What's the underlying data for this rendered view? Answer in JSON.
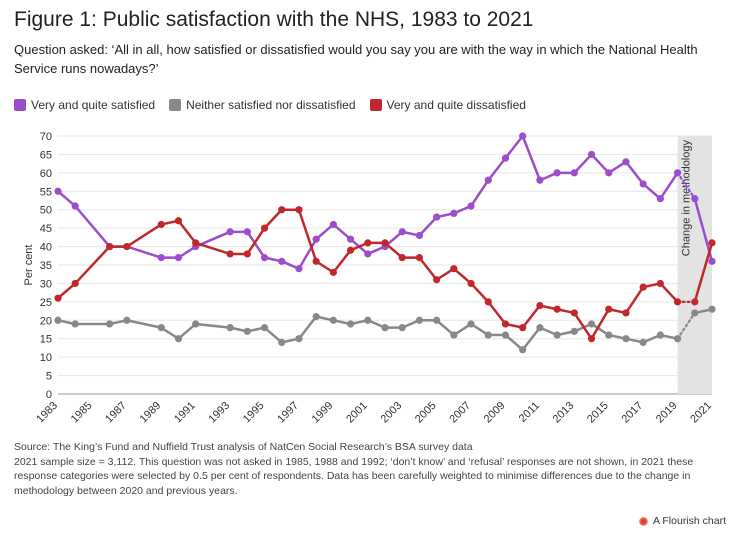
{
  "title": "Figure 1: Public satisfaction with the NHS, 1983 to 2021",
  "subtitle": "Question asked: ‘All in all, how satisfied or dissatisfied would you say you are with the way in which the National Health Service runs nowadays?’",
  "source_line": "Source: The King’s Fund and Nuffield Trust analysis of NatCen Social Research’s BSA survey data",
  "note_line": "2021 sample size = 3,112. This question was not asked in 1985, 1988 and 1992; ‘don’t know’ and ‘refusal’ responses are not shown, in 2021 these response categories were selected by 0.5 per cent of respondents. Data has been carefully weighted to minimise differences due to the change in methodology between 2020 and previous years.",
  "credit": "A Flourish chart",
  "chart_data": {
    "type": "line",
    "ylabel": "Per cent",
    "xlabel": "",
    "ylim": [
      0,
      70
    ],
    "yticks": [
      0,
      5,
      10,
      15,
      20,
      25,
      30,
      35,
      40,
      45,
      50,
      55,
      60,
      65,
      70
    ],
    "xlim": [
      1983,
      2021
    ],
    "xtick_labels": [
      "1983",
      "1985",
      "1987",
      "1989",
      "1991",
      "1993",
      "1995",
      "1997",
      "1999",
      "2001",
      "2003",
      "2005",
      "2007",
      "2009",
      "2011",
      "2013",
      "2015",
      "2017",
      "2019",
      "2021"
    ],
    "grid": true,
    "legend_position": "top-left",
    "annotation": {
      "text": "Change in methodology",
      "x_range": [
        2019,
        2021
      ],
      "color": "#e3e3e3"
    },
    "dotted_segment_years": [
      2019,
      2020
    ],
    "series": [
      {
        "name": "Very and quite satisfied",
        "color": "#9b4dca",
        "x": [
          1983,
          1984,
          1986,
          1987,
          1989,
          1990,
          1991,
          1993,
          1994,
          1995,
          1996,
          1997,
          1998,
          1999,
          2000,
          2001,
          2002,
          2003,
          2004,
          2005,
          2006,
          2007,
          2008,
          2009,
          2010,
          2011,
          2012,
          2013,
          2014,
          2015,
          2016,
          2017,
          2018,
          2019,
          2020,
          2021
        ],
        "values": [
          55,
          51,
          40,
          40,
          37,
          37,
          40,
          44,
          44,
          37,
          36,
          34,
          42,
          46,
          42,
          38,
          40,
          44,
          43,
          48,
          49,
          51,
          58,
          64,
          70,
          58,
          60,
          60,
          65,
          60,
          63,
          57,
          53,
          60,
          53,
          36
        ]
      },
      {
        "name": "Neither satisfied nor dissatisfied",
        "color": "#888888",
        "x": [
          1983,
          1984,
          1986,
          1987,
          1989,
          1990,
          1991,
          1993,
          1994,
          1995,
          1996,
          1997,
          1998,
          1999,
          2000,
          2001,
          2002,
          2003,
          2004,
          2005,
          2006,
          2007,
          2008,
          2009,
          2010,
          2011,
          2012,
          2013,
          2014,
          2015,
          2016,
          2017,
          2018,
          2019,
          2020,
          2021
        ],
        "values": [
          20,
          19,
          19,
          20,
          18,
          15,
          19,
          18,
          17,
          18,
          14,
          15,
          21,
          20,
          19,
          20,
          18,
          18,
          20,
          20,
          16,
          19,
          16,
          16,
          12,
          18,
          16,
          17,
          19,
          16,
          15,
          14,
          16,
          15,
          22,
          23
        ]
      },
      {
        "name": "Very and quite dissatisfied",
        "color": "#c0282b",
        "x": [
          1983,
          1984,
          1986,
          1987,
          1989,
          1990,
          1991,
          1993,
          1994,
          1995,
          1996,
          1997,
          1998,
          1999,
          2000,
          2001,
          2002,
          2003,
          2004,
          2005,
          2006,
          2007,
          2008,
          2009,
          2010,
          2011,
          2012,
          2013,
          2014,
          2015,
          2016,
          2017,
          2018,
          2019,
          2020,
          2021
        ],
        "values": [
          26,
          30,
          40,
          40,
          46,
          47,
          41,
          38,
          38,
          45,
          50,
          50,
          36,
          33,
          39,
          41,
          41,
          37,
          37,
          31,
          34,
          30,
          25,
          19,
          18,
          24,
          23,
          22,
          15,
          23,
          22,
          29,
          30,
          25,
          25,
          41
        ]
      }
    ]
  }
}
